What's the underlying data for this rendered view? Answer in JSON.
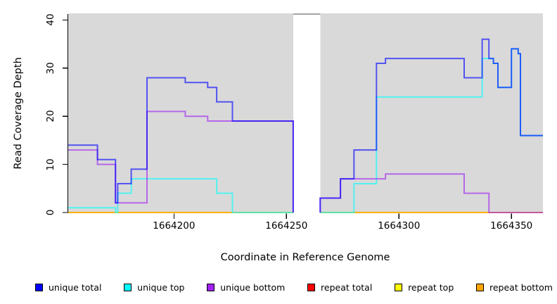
{
  "chart_data": {
    "type": "line",
    "step": true,
    "title": "",
    "xlabel": "Coordinate in Reference Genome",
    "ylabel": "Read Coverage Depth",
    "xlim": [
      1664153,
      1664364
    ],
    "ylim": [
      0,
      41.4
    ],
    "grid": false,
    "legend_position": "bottom",
    "plot_bg_color": "#D9D9D9",
    "gap_region": [
      1664253,
      1664265
    ],
    "bg_regions": [
      [
        1664153,
        1664253
      ],
      [
        1664265,
        1664364
      ]
    ],
    "x_ticks": [
      1664200,
      1664250,
      1664300,
      1664350
    ],
    "x_tick_labels": [
      "1664200",
      "1664250",
      "1664300",
      "1664350"
    ],
    "y_ticks": [
      0,
      10,
      20,
      30,
      40
    ],
    "y_tick_labels": [
      "0",
      "10",
      "20",
      "30",
      "40"
    ],
    "line_width": 2,
    "line_opacity": 0.62,
    "draw_order": [
      3,
      4,
      5,
      1,
      2,
      0
    ],
    "series": [
      {
        "name": "unique total",
        "color": "#0000FF",
        "regions": [
          [
            [
              1664153,
              14
            ],
            [
              1664166,
              11
            ],
            [
              1664174,
              2
            ],
            [
              1664175,
              6
            ],
            [
              1664181,
              9
            ],
            [
              1664188,
              28
            ],
            [
              1664205,
              27
            ],
            [
              1664215,
              26
            ],
            [
              1664219,
              23
            ],
            [
              1664226,
              19
            ],
            [
              1664253,
              0
            ]
          ],
          [
            [
              1664265,
              0
            ],
            [
              1664265,
              3
            ],
            [
              1664274,
              7
            ],
            [
              1664280,
              13
            ],
            [
              1664290,
              31
            ],
            [
              1664294,
              32
            ],
            [
              1664329,
              28
            ],
            [
              1664337,
              36
            ],
            [
              1664340,
              32
            ],
            [
              1664342,
              31
            ],
            [
              1664344,
              26
            ],
            [
              1664350,
              34
            ],
            [
              1664353,
              33
            ],
            [
              1664354,
              16
            ],
            [
              1664364,
              16
            ]
          ]
        ]
      },
      {
        "name": "unique top",
        "color": "#00FFFF",
        "regions": [
          [
            [
              1664153,
              1
            ],
            [
              1664174,
              0
            ],
            [
              1664175,
              4
            ],
            [
              1664181,
              7
            ],
            [
              1664219,
              4
            ],
            [
              1664226,
              0
            ],
            [
              1664253,
              0
            ]
          ],
          [
            [
              1664265,
              0
            ],
            [
              1664280,
              0
            ],
            [
              1664280,
              6
            ],
            [
              1664290,
              24
            ],
            [
              1664337,
              32
            ],
            [
              1664340,
              32
            ],
            [
              1664342,
              31
            ],
            [
              1664344,
              26
            ],
            [
              1664350,
              34
            ],
            [
              1664353,
              33
            ],
            [
              1664354,
              16
            ],
            [
              1664364,
              16
            ]
          ]
        ]
      },
      {
        "name": "unique bottom",
        "color": "#A020F0",
        "regions": [
          [
            [
              1664153,
              13
            ],
            [
              1664166,
              10
            ],
            [
              1664174,
              2
            ],
            [
              1664188,
              21
            ],
            [
              1664205,
              20
            ],
            [
              1664215,
              19
            ],
            [
              1664253,
              0
            ]
          ],
          [
            [
              1664265,
              0
            ],
            [
              1664265,
              3
            ],
            [
              1664274,
              7
            ],
            [
              1664294,
              8
            ],
            [
              1664329,
              4
            ],
            [
              1664340,
              0
            ],
            [
              1664364,
              0
            ]
          ]
        ]
      },
      {
        "name": "repeat total",
        "color": "#FF0000",
        "regions": [
          [
            [
              1664153,
              0
            ],
            [
              1664253,
              0
            ]
          ],
          [
            [
              1664265,
              0
            ],
            [
              1664364,
              0
            ]
          ]
        ]
      },
      {
        "name": "repeat top",
        "color": "#FFFF00",
        "regions": [
          [
            [
              1664153,
              0
            ],
            [
              1664253,
              0
            ]
          ],
          [
            [
              1664265,
              0
            ],
            [
              1664364,
              0
            ]
          ]
        ]
      },
      {
        "name": "repeat bottom",
        "color": "#FFA500",
        "regions": [
          [
            [
              1664153,
              0
            ],
            [
              1664253,
              0
            ]
          ],
          [
            [
              1664265,
              0
            ],
            [
              1664364,
              0
            ]
          ]
        ]
      }
    ]
  },
  "legend": {
    "items": [
      {
        "label": "unique total"
      },
      {
        "label": "unique top"
      },
      {
        "label": "unique bottom"
      },
      {
        "label": "repeat total"
      },
      {
        "label": "repeat top"
      },
      {
        "label": "repeat bottom"
      }
    ]
  }
}
